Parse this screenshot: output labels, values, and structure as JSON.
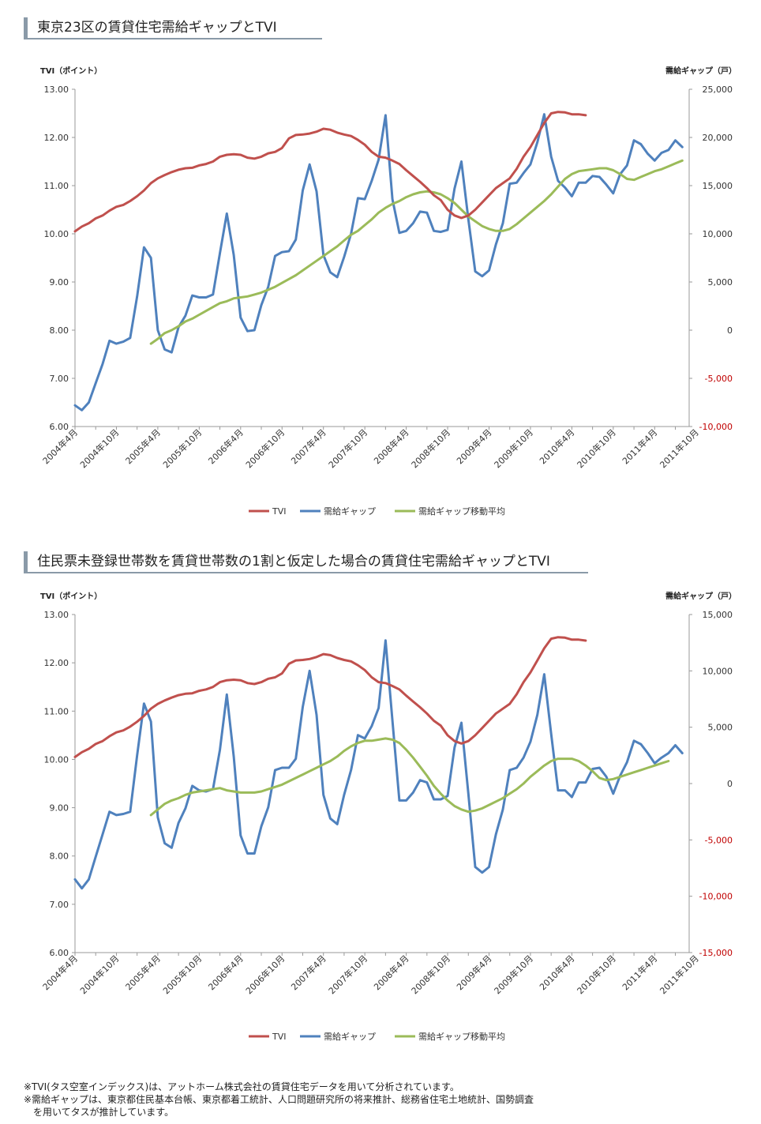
{
  "footnotes": [
    "※TVI(タス空室インデックス)は、アットホーム株式会社の賃貸住宅データを用いて分析されています。",
    "※需給ギャップは、東京都住民基本台帳、東京都着工統計、人口問題研究所の将来推計、総務省住宅土地統計、国勢調査",
    "　を用いてタスが推計しています。"
  ],
  "colors": {
    "tvi": "#c0504d",
    "gap": "#4f81bd",
    "ma": "#9bbb59",
    "negative": "#c00000",
    "axis": "#999999",
    "title_bar": "#8a9aa8"
  },
  "chart_data": [
    {
      "type": "line",
      "title": "東京23区の賃貸住宅需給ギャップとTVI",
      "ylabel": "TVI（ポイント）",
      "y2label": "需給ギャップ（戸）",
      "ylim": [
        6,
        13
      ],
      "y2lim": [
        -10000,
        25000
      ],
      "ytick_labels": [
        "6.00",
        "7.00",
        "8.00",
        "9.00",
        "10.00",
        "11.00",
        "12.00",
        "13.00"
      ],
      "y2tick_labels": [
        "-10,000",
        "-5,000",
        "0",
        "5,000",
        "10,000",
        "15,000",
        "20,000",
        "25,000"
      ],
      "x_labels": [
        "2004年4月",
        "2004年10月",
        "2005年4月",
        "2005年10月",
        "2006年4月",
        "2006年10月",
        "2007年4月",
        "2007年10月",
        "2008年4月",
        "2008年10月",
        "2009年4月",
        "2009年10月",
        "2010年4月",
        "2010年10月",
        "2011年4月",
        "2011年10月"
      ],
      "legend": [
        "TVI",
        "需給ギャップ",
        "需給ギャップ移動平均"
      ],
      "legend_position": "bottom",
      "grid": false,
      "series": [
        {
          "name": "TVI",
          "axis": "left",
          "start": 0,
          "values": [
            10.05,
            10.15,
            10.22,
            10.32,
            10.38,
            10.48,
            10.56,
            10.6,
            10.68,
            10.78,
            10.9,
            11.05,
            11.15,
            11.22,
            11.28,
            11.33,
            11.36,
            11.37,
            11.42,
            11.45,
            11.5,
            11.6,
            11.64,
            11.65,
            11.64,
            11.58,
            11.56,
            11.6,
            11.67,
            11.7,
            11.78,
            11.98,
            12.05,
            12.06,
            12.08,
            12.12,
            12.18,
            12.16,
            12.1,
            12.06,
            12.03,
            11.95,
            11.85,
            11.7,
            11.6,
            11.58,
            11.52,
            11.45,
            11.32,
            11.2,
            11.08,
            10.95,
            10.8,
            10.7,
            10.5,
            10.38,
            10.33,
            10.38,
            10.5,
            10.65,
            10.8,
            10.95,
            11.05,
            11.15,
            11.35,
            11.6,
            11.8,
            12.05,
            12.3,
            12.5,
            12.53,
            12.52,
            12.48,
            12.48,
            12.46
          ]
        },
        {
          "name": "需給ギャップ",
          "axis": "right",
          "start": 0,
          "values": [
            -7800,
            -8300,
            -7500,
            -5500,
            -3500,
            -1100,
            -1400,
            -1200,
            -800,
            3500,
            8600,
            7500,
            0,
            -2000,
            -2300,
            300,
            1500,
            3600,
            3400,
            3400,
            3700,
            8000,
            12100,
            7800,
            1300,
            -100,
            0,
            2600,
            4500,
            7700,
            8100,
            8200,
            9400,
            14500,
            17200,
            14400,
            7800,
            6000,
            5500,
            7600,
            10000,
            13700,
            13600,
            15500,
            17700,
            22300,
            13600,
            10100,
            10300,
            11100,
            12300,
            12200,
            10300,
            10200,
            10400,
            14700,
            17500,
            11500,
            6100,
            5600,
            6200,
            8900,
            11100,
            15200,
            15300,
            16300,
            17200,
            19500,
            22400,
            18000,
            15500,
            14800,
            13900,
            15300,
            15300,
            16000,
            15900,
            15100,
            14200,
            16200,
            17100,
            19700,
            19300,
            18300,
            17600,
            18400,
            18700,
            19700,
            19000
          ]
        },
        {
          "name": "需給ギャップ移動平均",
          "axis": "right",
          "start": 11,
          "values": [
            -1400,
            -900,
            -300,
            0,
            400,
            900,
            1200,
            1600,
            2000,
            2400,
            2800,
            3000,
            3300,
            3400,
            3500,
            3700,
            3900,
            4200,
            4500,
            4900,
            5300,
            5700,
            6200,
            6700,
            7200,
            7700,
            8200,
            8700,
            9300,
            9900,
            10300,
            10900,
            11500,
            12200,
            12700,
            13100,
            13400,
            13800,
            14100,
            14300,
            14400,
            14300,
            14100,
            13700,
            13200,
            12500,
            11800,
            11300,
            10800,
            10500,
            10300,
            10300,
            10500,
            11000,
            11600,
            12200,
            12800,
            13400,
            14100,
            14900,
            15700,
            16200,
            16500,
            16600,
            16700,
            16800,
            16800,
            16600,
            16200,
            15700,
            15600,
            15900,
            16200,
            16500,
            16700,
            17000,
            17300,
            17600
          ]
        }
      ]
    },
    {
      "type": "line",
      "title": "住民票未登録世帯数を賃貸世帯数の1割と仮定した場合の賃貸住宅需給ギャップとTVI",
      "ylabel": "TVI（ポイント）",
      "y2label": "需給ギャップ（戸）",
      "ylim": [
        6,
        13
      ],
      "y2lim": [
        -15000,
        15000
      ],
      "ytick_labels": [
        "6.00",
        "7.00",
        "8.00",
        "9.00",
        "10.00",
        "11.00",
        "12.00",
        "13.00"
      ],
      "y2tick_labels": [
        "-15,000",
        "-10,000",
        "-5,000",
        "0",
        "5,000",
        "10,000",
        "15,000"
      ],
      "x_labels": [
        "2004年4月",
        "2004年10月",
        "2005年4月",
        "2005年10月",
        "2006年4月",
        "2006年10月",
        "2007年4月",
        "2007年10月",
        "2008年4月",
        "2008年10月",
        "2009年4月",
        "2009年10月",
        "2010年4月",
        "2010年10月",
        "2011年4月",
        "2011年10月"
      ],
      "legend": [
        "TVI",
        "需給ギャップ",
        "需給ギャップ移動平均"
      ],
      "legend_position": "bottom",
      "grid": false,
      "series": [
        {
          "name": "TVI",
          "axis": "left",
          "start": 0,
          "values": [
            10.05,
            10.15,
            10.22,
            10.32,
            10.38,
            10.48,
            10.56,
            10.6,
            10.68,
            10.78,
            10.9,
            11.05,
            11.15,
            11.22,
            11.28,
            11.33,
            11.36,
            11.37,
            11.42,
            11.45,
            11.5,
            11.6,
            11.64,
            11.65,
            11.64,
            11.58,
            11.56,
            11.6,
            11.67,
            11.7,
            11.78,
            11.98,
            12.05,
            12.06,
            12.08,
            12.12,
            12.18,
            12.16,
            12.1,
            12.06,
            12.03,
            11.95,
            11.85,
            11.7,
            11.6,
            11.58,
            11.52,
            11.45,
            11.32,
            11.2,
            11.08,
            10.95,
            10.8,
            10.7,
            10.5,
            10.38,
            10.33,
            10.38,
            10.5,
            10.65,
            10.8,
            10.95,
            11.05,
            11.15,
            11.35,
            11.6,
            11.8,
            12.05,
            12.3,
            12.5,
            12.53,
            12.52,
            12.48,
            12.48,
            12.46
          ]
        },
        {
          "name": "需給ギャップ",
          "axis": "right",
          "start": 0,
          "values": [
            -8500,
            -9300,
            -8500,
            -6500,
            -4500,
            -2500,
            -2800,
            -2700,
            -2500,
            2500,
            7100,
            5500,
            -3000,
            -5300,
            -5700,
            -3500,
            -2200,
            -200,
            -600,
            -700,
            -500,
            3000,
            7900,
            2400,
            -4600,
            -6200,
            -6200,
            -3800,
            -2100,
            1200,
            1400,
            1400,
            2200,
            6800,
            10000,
            6100,
            -1000,
            -3100,
            -3600,
            -1000,
            1200,
            4300,
            4000,
            5100,
            6700,
            12700,
            5600,
            -1500,
            -1500,
            -800,
            300,
            100,
            -1400,
            -1400,
            -1100,
            3200,
            5400,
            -900,
            -7400,
            -7900,
            -7400,
            -4500,
            -2300,
            1200,
            1400,
            2300,
            3700,
            6100,
            9700,
            4400,
            -600,
            -600,
            -1200,
            100,
            100,
            1300,
            1400,
            600,
            -900,
            700,
            1900,
            3800,
            3500,
            2700,
            1800,
            2300,
            2700,
            3400,
            2700
          ]
        },
        {
          "name": "需給ギャップ移動平均",
          "axis": "right",
          "start": 11,
          "values": [
            -2800,
            -2300,
            -1800,
            -1500,
            -1300,
            -1000,
            -800,
            -700,
            -600,
            -500,
            -400,
            -600,
            -700,
            -800,
            -800,
            -800,
            -700,
            -500,
            -300,
            -100,
            200,
            500,
            800,
            1100,
            1400,
            1700,
            2000,
            2400,
            2900,
            3300,
            3600,
            3800,
            3800,
            3900,
            4000,
            3900,
            3600,
            3000,
            2300,
            1500,
            700,
            -200,
            -900,
            -1500,
            -2000,
            -2300,
            -2500,
            -2400,
            -2200,
            -1900,
            -1600,
            -1300,
            -900,
            -500,
            0,
            600,
            1100,
            1600,
            2000,
            2200,
            2200,
            2200,
            2000,
            1600,
            1100,
            500,
            300,
            400,
            600,
            800,
            1000,
            1200,
            1400,
            1600,
            1800,
            2000
          ]
        }
      ]
    }
  ]
}
